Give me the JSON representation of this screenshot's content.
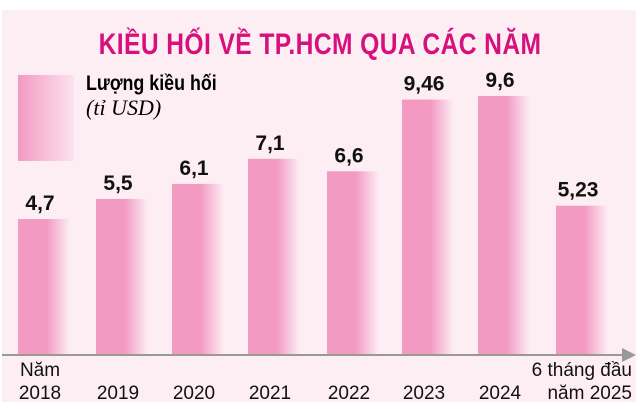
{
  "chart_data": {
    "type": "bar",
    "title": "KIỀU HỐI VỀ TP.HCM QUA CÁC NĂM",
    "legend": {
      "name": "Lượng kiều hối",
      "unit": "(tỉ USD)",
      "placement": "top-left"
    },
    "categories": [
      [
        "Năm",
        "2018"
      ],
      [
        "2019"
      ],
      [
        "2020"
      ],
      [
        "2021"
      ],
      [
        "2022"
      ],
      [
        "2023"
      ],
      [
        "2024"
      ],
      [
        "6 tháng đầu",
        "năm 2025"
      ]
    ],
    "values": [
      4.7,
      5.5,
      6.1,
      7.1,
      6.6,
      9.46,
      9.6,
      5.23
    ],
    "value_labels": [
      "4,7",
      "5,5",
      "6,1",
      "7,1",
      "6,6",
      "9,46",
      "9,6",
      "5,23"
    ],
    "colors": {
      "bar": "#f39ac3",
      "bar_fade": "#fdeef3",
      "title": "#d6117e",
      "axis": "#999999"
    },
    "grid": false
  }
}
